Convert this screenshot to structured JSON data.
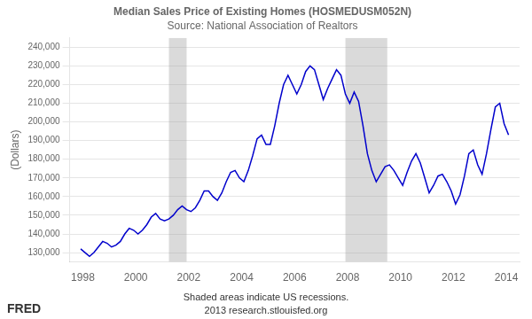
{
  "chart_data": {
    "type": "line",
    "title": "Median Sales Price of Existing Homes (HOSMEDUSM052N)",
    "subtitle": "Source: National Association of Realtors",
    "ylabel": "(Dollars)",
    "annotations": [
      "Shaded areas indicate US recessions.",
      "2013 research.stlouisfed.org",
      "FRED"
    ],
    "color": "#0000cc",
    "grid": "y",
    "recessions": [
      [
        2001.25,
        2001.92
      ],
      [
        2007.92,
        2009.5
      ]
    ],
    "ylim": [
      125000,
      245000
    ],
    "yticks": [
      {
        "value": 130000,
        "label": "130,000"
      },
      {
        "value": 140000,
        "label": "140,000"
      },
      {
        "value": 150000,
        "label": "150,000"
      },
      {
        "value": 160000,
        "label": "160,000"
      },
      {
        "value": 170000,
        "label": "170,000"
      },
      {
        "value": 180000,
        "label": "180,000"
      },
      {
        "value": 190000,
        "label": "190,000"
      },
      {
        "value": 200000,
        "label": "200,000"
      },
      {
        "value": 210000,
        "label": "210,000"
      },
      {
        "value": 220000,
        "label": "220,000"
      },
      {
        "value": 230000,
        "label": "230,000"
      },
      {
        "value": 240000,
        "label": "240,000"
      }
    ],
    "xlim": [
      1997.5,
      2014.5
    ],
    "xticks": [
      1998,
      2000,
      2002,
      2004,
      2006,
      2008,
      2010,
      2012,
      2014
    ],
    "x": [
      1997.917,
      1998.083,
      1998.25,
      1998.417,
      1998.583,
      1998.75,
      1998.917,
      1999.083,
      1999.25,
      1999.417,
      1999.583,
      1999.75,
      1999.917,
      2000.083,
      2000.25,
      2000.417,
      2000.583,
      2000.75,
      2000.917,
      2001.083,
      2001.25,
      2001.417,
      2001.583,
      2001.75,
      2001.917,
      2002.083,
      2002.25,
      2002.417,
      2002.583,
      2002.75,
      2002.917,
      2003.083,
      2003.25,
      2003.417,
      2003.583,
      2003.75,
      2003.917,
      2004.083,
      2004.25,
      2004.417,
      2004.583,
      2004.75,
      2004.917,
      2005.083,
      2005.25,
      2005.417,
      2005.583,
      2005.75,
      2005.917,
      2006.083,
      2006.25,
      2006.417,
      2006.583,
      2006.75,
      2006.917,
      2007.083,
      2007.25,
      2007.417,
      2007.583,
      2007.75,
      2007.917,
      2008.083,
      2008.25,
      2008.417,
      2008.583,
      2008.75,
      2008.917,
      2009.083,
      2009.25,
      2009.417,
      2009.583,
      2009.75,
      2009.917,
      2010.083,
      2010.25,
      2010.417,
      2010.583,
      2010.75,
      2010.917,
      2011.083,
      2011.25,
      2011.417,
      2011.583,
      2011.75,
      2011.917,
      2012.083,
      2012.25,
      2012.417,
      2012.583,
      2012.75,
      2012.917,
      2013.083,
      2013.25,
      2013.417,
      2013.583,
      2013.75,
      2013.917,
      2014.083
    ],
    "values": [
      132000,
      130000,
      128000,
      130000,
      133000,
      136000,
      135000,
      133000,
      134000,
      136000,
      140000,
      143000,
      142000,
      140000,
      142000,
      145000,
      149000,
      151000,
      148000,
      147000,
      148000,
      150000,
      153000,
      155000,
      153000,
      152000,
      154000,
      158000,
      163000,
      163000,
      160000,
      158000,
      162000,
      168000,
      173000,
      174000,
      170000,
      168000,
      174000,
      182000,
      191000,
      193000,
      188000,
      188000,
      198000,
      210000,
      220000,
      225000,
      220000,
      215000,
      220000,
      227000,
      230000,
      228000,
      220000,
      212000,
      218000,
      223000,
      228000,
      225000,
      215000,
      210000,
      216000,
      211000,
      198000,
      183000,
      174000,
      168000,
      172000,
      176000,
      177000,
      174000,
      170000,
      166000,
      173000,
      179000,
      183000,
      178000,
      170000,
      162000,
      166000,
      171000,
      172000,
      168000,
      163000,
      156000,
      161000,
      171000,
      183000,
      185000,
      177000,
      172000,
      183000,
      196000,
      208000,
      210000,
      199000,
      193000
    ]
  }
}
